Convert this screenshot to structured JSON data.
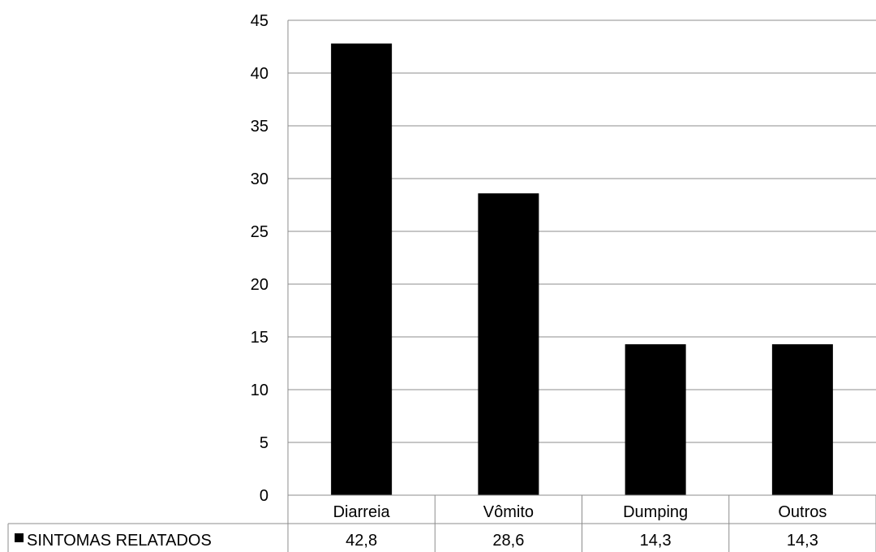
{
  "chart_data": {
    "type": "bar",
    "categories": [
      "Diarreia",
      "Vômito",
      "Dumping",
      "Outros"
    ],
    "series": [
      {
        "name": "SINTOMAS RELATADOS",
        "values": [
          42.8,
          28.6,
          14.3,
          14.3
        ],
        "value_labels": [
          "42,8",
          "28,6",
          "14,3",
          "14,3"
        ],
        "color": "#000000"
      }
    ],
    "yticks": [
      "0",
      "5",
      "10",
      "15",
      "20",
      "25",
      "30",
      "35",
      "40",
      "45"
    ],
    "ylim": [
      0,
      45
    ],
    "ystep": 5,
    "grid": true,
    "gridColor": "#8c8c8c",
    "data_table": true
  }
}
